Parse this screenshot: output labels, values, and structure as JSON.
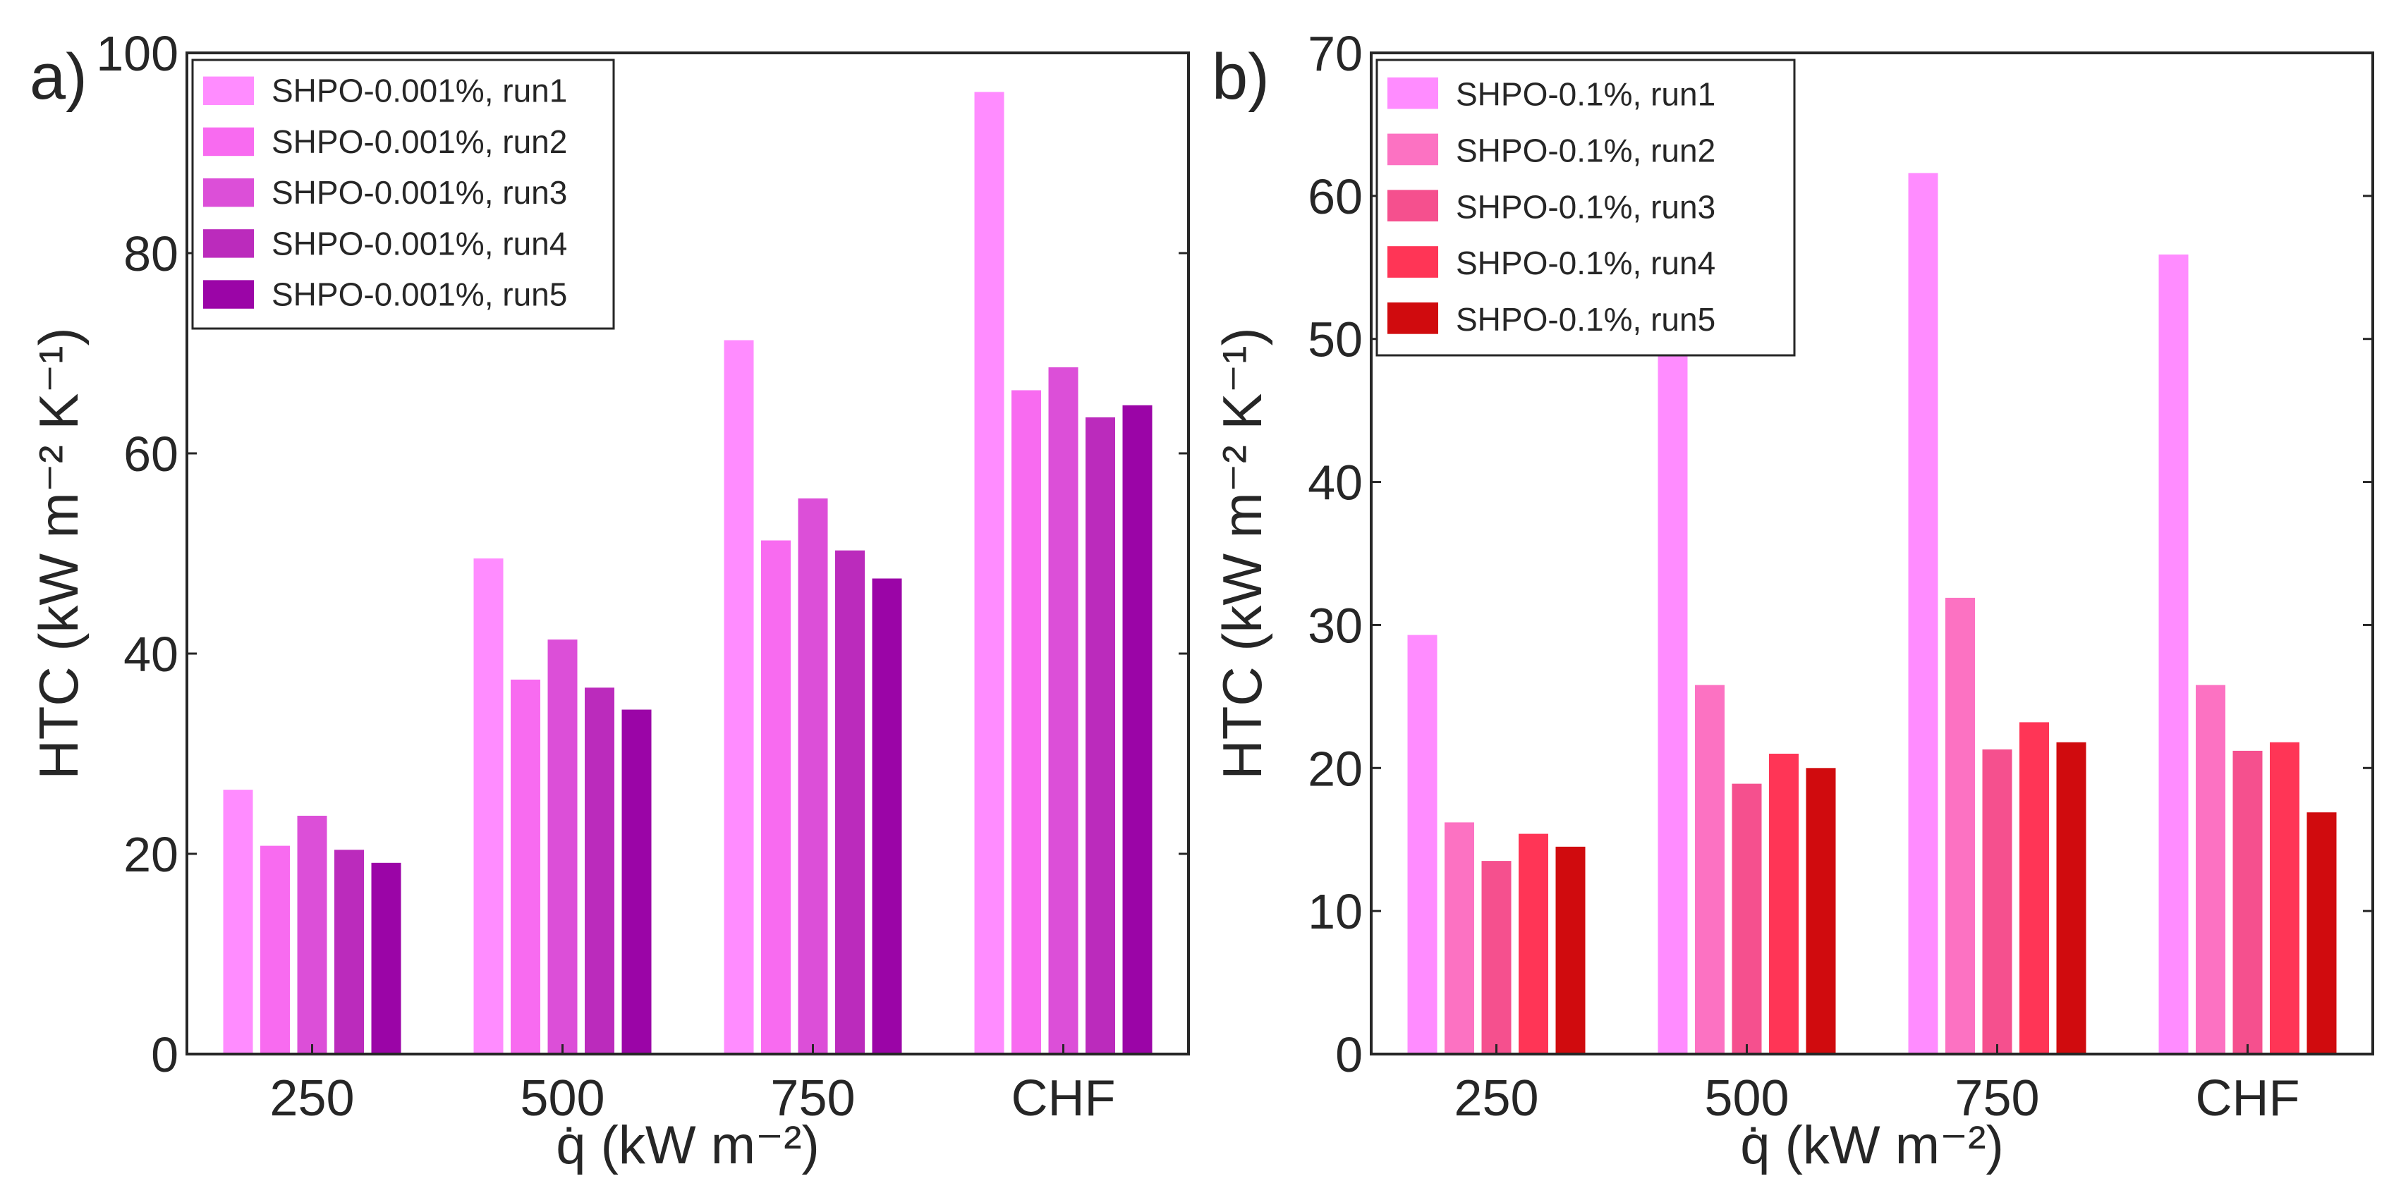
{
  "chart_data": [
    {
      "panel_label": "a)",
      "type": "bar",
      "categories": [
        "250",
        "500",
        "750",
        "CHF"
      ],
      "xlabel": "q̇ (kW m⁻²)",
      "ylabel": "HTC (kW m⁻² K⁻¹)",
      "ylim": [
        0,
        100
      ],
      "yticks": [
        0,
        20,
        40,
        60,
        80,
        100
      ],
      "grid": false,
      "legend_position": "top-left",
      "series": [
        {
          "name": "SHPO-0.001%, run1",
          "color": "#ff8cff",
          "values": [
            26.4,
            49.5,
            71.3,
            96.1
          ]
        },
        {
          "name": "SHPO-0.001%, run2",
          "color": "#f86bf0",
          "values": [
            20.8,
            37.4,
            51.3,
            66.3
          ]
        },
        {
          "name": "SHPO-0.001%, run3",
          "color": "#dc4fd8",
          "values": [
            23.8,
            41.4,
            55.5,
            68.6
          ]
        },
        {
          "name": "SHPO-0.001%, run4",
          "color": "#bb2bbc",
          "values": [
            20.4,
            36.6,
            50.3,
            63.6
          ]
        },
        {
          "name": "SHPO-0.001%, run5",
          "color": "#9b05a7",
          "values": [
            19.1,
            34.4,
            47.5,
            64.8
          ]
        }
      ]
    },
    {
      "panel_label": "b)",
      "type": "bar",
      "categories": [
        "250",
        "500",
        "750",
        "CHF"
      ],
      "xlabel": "q̇ (kW m⁻²)",
      "ylabel": "HTC (kW m⁻² K⁻¹)",
      "ylim": [
        0,
        70
      ],
      "yticks": [
        0,
        10,
        20,
        30,
        40,
        50,
        60,
        70
      ],
      "grid": false,
      "legend_position": "top-left",
      "series": [
        {
          "name": "SHPO-0.1%, run1",
          "color": "#ff8cff",
          "values": [
            29.3,
            49.0,
            61.6,
            55.9
          ]
        },
        {
          "name": "SHPO-0.1%, run2",
          "color": "#fc72c2",
          "values": [
            16.2,
            25.8,
            31.9,
            25.8
          ]
        },
        {
          "name": "SHPO-0.1%, run3",
          "color": "#f5508e",
          "values": [
            13.5,
            18.9,
            21.3,
            21.2
          ]
        },
        {
          "name": "SHPO-0.1%, run4",
          "color": "#ff3556",
          "values": [
            15.4,
            21.0,
            23.2,
            21.8
          ]
        },
        {
          "name": "SHPO-0.1%, run5",
          "color": "#d00b0e",
          "values": [
            14.5,
            20.0,
            21.8,
            16.9
          ]
        }
      ]
    }
  ]
}
